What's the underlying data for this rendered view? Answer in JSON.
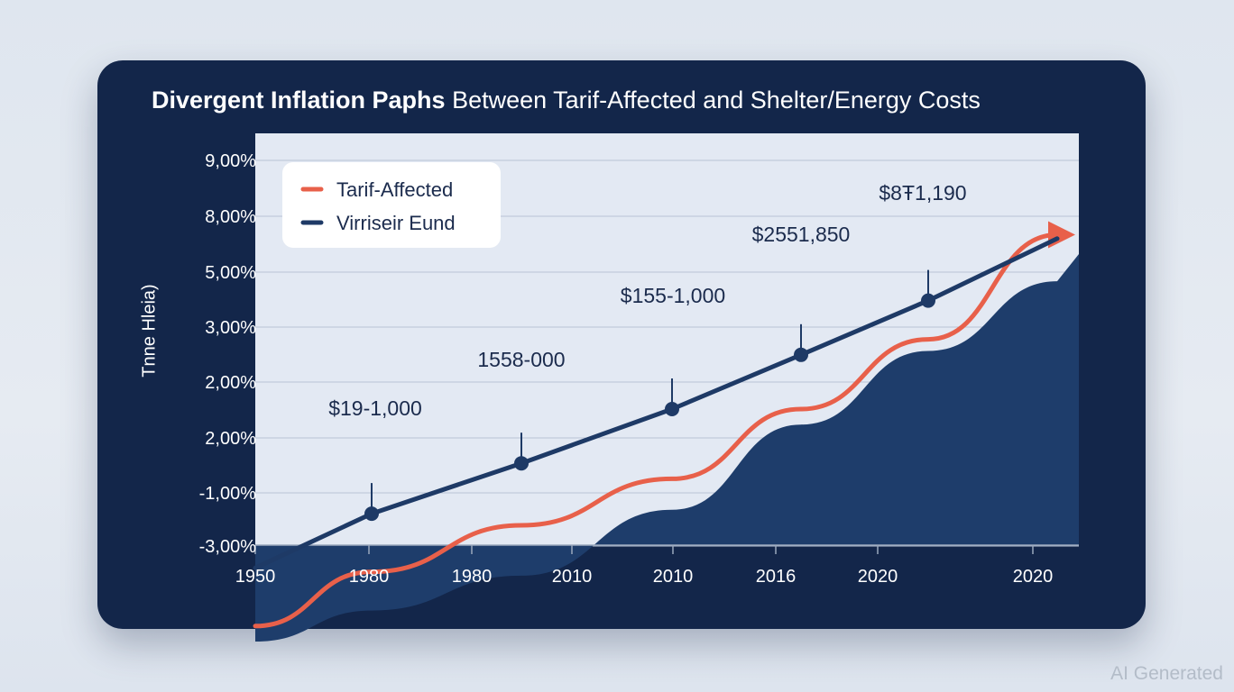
{
  "chart_data": {
    "type": "line",
    "title_bold": "Divergent Inflation Paphs",
    "title_rest": "Between Tarif-Affected and Shelter/Energy Costs",
    "ylabel": "Tnne Hleia)",
    "y_tick_labels": [
      "9,00%",
      "8,00%",
      "5,00%",
      "3,00%",
      "2,00%",
      "2,00%",
      "-1,00%",
      "-3,00%"
    ],
    "x_tick_labels": [
      "1950",
      "1980",
      "1980",
      "2010",
      "2010",
      "2016",
      "2020",
      "2020"
    ],
    "grid": true,
    "legend_position": "top-left",
    "legend": [
      {
        "label": "Tarif-Affected",
        "color": "#e8604a"
      },
      {
        "label": "Virriseir Eund",
        "color": "#1e3a66"
      }
    ],
    "series": [
      {
        "name": "Virriseir Eund",
        "color": "#1e3a66",
        "x": [
          1950,
          1980,
          1990,
          2000,
          2010,
          2015,
          2020
        ],
        "y": [
          -1.1,
          0.3,
          1.6,
          3.0,
          4.4,
          5.8,
          7.4
        ],
        "markers": [
          {
            "x": 1980,
            "label": "$19-1,000"
          },
          {
            "x": 1990,
            "label": "1558-000"
          },
          {
            "x": 2000,
            "label": "$155-1,000"
          },
          {
            "x": 2010,
            "label": "$2551,850"
          },
          {
            "x": 2015,
            "label": "$8Ŧ1,190"
          }
        ]
      },
      {
        "name": "Tarif-Affected",
        "color": "#e8604a",
        "x": [
          1950,
          1980,
          1990,
          2000,
          2010,
          2015,
          2020
        ],
        "y": [
          -2.6,
          -1.2,
          0.0,
          1.2,
          3.0,
          4.8,
          7.5
        ]
      },
      {
        "name": "",
        "type": "area",
        "color": "#1e3d6b",
        "x": [
          1950,
          1980,
          1990,
          2000,
          2010,
          2015,
          2020
        ],
        "y": [
          -3.0,
          -2.2,
          -1.3,
          0.4,
          2.6,
          4.5,
          6.3
        ]
      }
    ]
  },
  "watermark": "AI Generated"
}
